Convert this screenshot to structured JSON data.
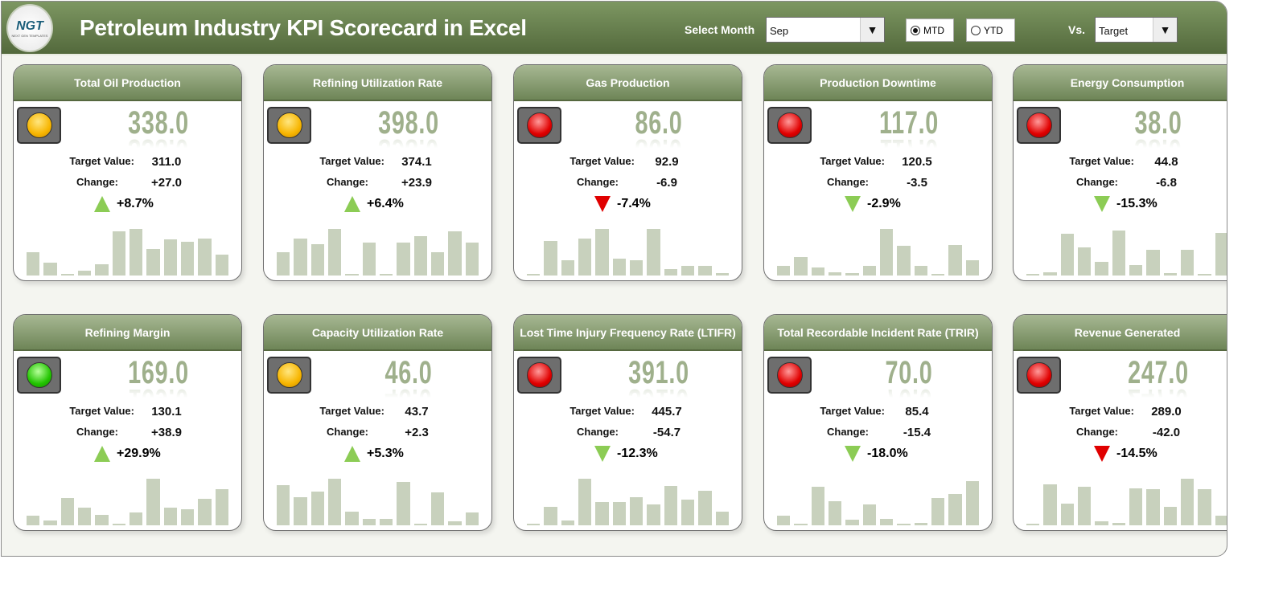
{
  "header": {
    "title": "Petroleum Industry KPI Scorecard in Excel",
    "logo_text": "NGT",
    "logo_sub": "NEXT GEN TEMPLATES",
    "select_month_label": "Select Month",
    "month": "Sep",
    "mtd_label": "MTD",
    "ytd_label": "YTD",
    "period_selected": "MTD",
    "vs_label": "Vs.",
    "vs_value": "Target"
  },
  "labels": {
    "target": "Target Value:",
    "change": "Change:"
  },
  "colors": {
    "header": "#6e8557",
    "bar": "#c8d1bd",
    "up_good": "#8ccc55",
    "bad": "#e00000"
  },
  "cards": [
    {
      "title": "Total Oil Production",
      "value": "338.0",
      "target": "311.0",
      "change": "+27.0",
      "pct": "+8.7%",
      "light": "yellow",
      "arrow": "up",
      "arrow_color": "green",
      "trend": [
        0.5,
        0.27,
        0.02,
        0.1,
        0.24,
        0.95,
        1.0,
        0.57,
        0.77,
        0.73,
        0.8,
        0.44
      ]
    },
    {
      "title": "Refining Utilization Rate",
      "value": "398.0",
      "target": "374.1",
      "change": "+23.9",
      "pct": "+6.4%",
      "light": "yellow",
      "arrow": "up",
      "arrow_color": "green",
      "trend": [
        0.5,
        0.8,
        0.68,
        1.0,
        0.03,
        0.7,
        0.03,
        0.7,
        0.85,
        0.5,
        0.95,
        0.7
      ]
    },
    {
      "title": "Gas Production",
      "value": "86.0",
      "target": "92.9",
      "change": "-6.9",
      "pct": "-7.4%",
      "light": "red",
      "arrow": "down",
      "arrow_color": "red",
      "trend": [
        0.03,
        0.75,
        0.33,
        0.8,
        1.0,
        0.37,
        0.32,
        1.0,
        0.14,
        0.2,
        0.2,
        0.05
      ]
    },
    {
      "title": "Production Downtime",
      "value": "117.0",
      "target": "120.5",
      "change": "-3.5",
      "pct": "-2.9%",
      "light": "red",
      "arrow": "down",
      "arrow_color": "green",
      "trend": [
        0.2,
        0.4,
        0.17,
        0.07,
        0.05,
        0.2,
        1.0,
        0.63,
        0.2,
        0.03,
        0.65,
        0.33
      ]
    },
    {
      "title": "Energy Consumption",
      "value": "38.0",
      "target": "44.8",
      "change": "-6.8",
      "pct": "-15.3%",
      "light": "red",
      "arrow": "down",
      "arrow_color": "green",
      "trend": [
        0.02,
        0.07,
        0.9,
        0.6,
        0.3,
        0.97,
        0.23,
        0.55,
        0.05,
        0.55,
        0.02,
        0.92
      ]
    },
    {
      "title": "Refining Margin",
      "value": "169.0",
      "target": "130.1",
      "change": "+38.9",
      "pct": "+29.9%",
      "light": "green",
      "arrow": "up",
      "arrow_color": "green",
      "trend": [
        0.2,
        0.1,
        0.58,
        0.38,
        0.22,
        0.03,
        0.28,
        1.0,
        0.38,
        0.34,
        0.57,
        0.78
      ]
    },
    {
      "title": "Capacity Utilization Rate",
      "value": "46.0",
      "target": "43.7",
      "change": "+2.3",
      "pct": "+5.3%",
      "light": "yellow",
      "arrow": "up",
      "arrow_color": "green",
      "trend": [
        0.87,
        0.6,
        0.72,
        1.0,
        0.3,
        0.13,
        0.14,
        0.93,
        0.02,
        0.7,
        0.08,
        0.27
      ]
    },
    {
      "title": "Lost Time Injury Frequency Rate (LTIFR)",
      "value": "391.0",
      "target": "445.7",
      "change": "-54.7",
      "pct": "-12.3%",
      "light": "red",
      "arrow": "down",
      "arrow_color": "green",
      "trend": [
        0.03,
        0.4,
        0.1,
        1.0,
        0.5,
        0.5,
        0.6,
        0.45,
        0.85,
        0.55,
        0.75,
        0.3
      ]
    },
    {
      "title": "Total Recordable Incident Rate (TRIR)",
      "value": "70.0",
      "target": "85.4",
      "change": "-15.4",
      "pct": "-18.0%",
      "light": "red",
      "arrow": "down",
      "arrow_color": "green",
      "trend": [
        0.2,
        0.02,
        0.82,
        0.52,
        0.12,
        0.45,
        0.13,
        0.02,
        0.05,
        0.58,
        0.68,
        0.95
      ]
    },
    {
      "title": "Revenue Generated",
      "value": "247.0",
      "target": "289.0",
      "change": "-42.0",
      "pct": "-14.5%",
      "light": "red",
      "arrow": "down",
      "arrow_color": "red",
      "trend": [
        0.02,
        0.88,
        0.47,
        0.83,
        0.08,
        0.05,
        0.79,
        0.77,
        0.4,
        1.0,
        0.77,
        0.2
      ]
    }
  ]
}
